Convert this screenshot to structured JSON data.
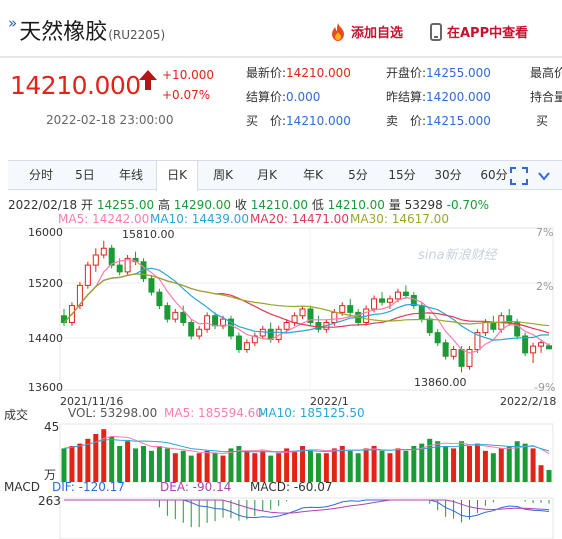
{
  "header": {
    "title": "天然橡胶",
    "code": "(RU2205)",
    "add_watchlist": "添加自选",
    "view_in_app": "在APP中查看"
  },
  "quote": {
    "price": "14210.000",
    "change": "+10.000",
    "change_pct": "+0.07%",
    "time": "2022-02-18 23:00:00",
    "fields": [
      {
        "label": "最新价:",
        "value": "14210.000"
      },
      {
        "label": "开盘价:",
        "value": "14255.000"
      },
      {
        "label": "最高价",
        "value": ""
      },
      {
        "label": "结算价:",
        "value": "0.000"
      },
      {
        "label": "昨结算:",
        "value": "14200.000"
      },
      {
        "label": "持合量",
        "value": ""
      },
      {
        "label": "买　价:",
        "value": "14210.000"
      },
      {
        "label": "卖　价:",
        "value": "14215.000"
      },
      {
        "label": "买",
        "value": ""
      }
    ]
  },
  "tabs": [
    "分时",
    "5日",
    "年线",
    "日K",
    "周K",
    "月K",
    "年K",
    "5分",
    "15分",
    "30分",
    "60分"
  ],
  "active_tab": "日K",
  "kline_info": {
    "date": "2022/02/18",
    "open_label": "开",
    "open": "14255.00",
    "high_label": "高",
    "high": "14290.00",
    "close_label": "收",
    "close": "14210.00",
    "low_label": "低",
    "low": "14210.00",
    "vol_label": "量",
    "vol": "53298",
    "pct": "-0.70%",
    "ma5": "MA5: 14242.00",
    "ma10": "MA10: 14439.00",
    "ma20": "MA20: 14471.00",
    "ma30": "MA30: 14617.00"
  },
  "vol_info": {
    "label": "成交",
    "vol": "VOL: 53298.00",
    "ma5": "MA5: 185594.60",
    "ma10": "MA10: 185125.50",
    "y_top": "45",
    "unit": "万"
  },
  "macd_info": {
    "label": "MACD",
    "dif": "DIF: -120.17",
    "dea": "DEA: -90.14",
    "macd": "MACD: -60.07",
    "y_top": "263"
  },
  "watermark": "sina新浪财经",
  "colors": {
    "up": "#e2231a",
    "down": "#1a9b36",
    "ma5": "#ff7bb0",
    "ma10": "#2aa6d6",
    "ma20": "#e03a5a",
    "ma30": "#9aa82a"
  },
  "chart_data": {
    "type": "candlestick",
    "y_ticks": [
      16000,
      15200,
      14400,
      13600
    ],
    "y_pct_ticks": [
      "7%",
      "2%",
      "-9%"
    ],
    "x_ticks": [
      "2021/11/16",
      "2022/1",
      "2022/2/18"
    ],
    "max_label": "15810.00",
    "min_label": "13860.00",
    "ylim": [
      13600,
      16000
    ],
    "candles": [
      [
        14700,
        14800,
        14550,
        14600
      ],
      [
        14600,
        14900,
        14550,
        14850
      ],
      [
        14850,
        15200,
        14800,
        15150
      ],
      [
        15150,
        15500,
        15100,
        15450
      ],
      [
        15450,
        15700,
        15350,
        15600
      ],
      [
        15600,
        15810,
        15550,
        15700
      ],
      [
        15700,
        15750,
        15400,
        15450
      ],
      [
        15450,
        15550,
        15300,
        15350
      ],
      [
        15350,
        15600,
        15300,
        15550
      ],
      [
        15550,
        15650,
        15450,
        15500
      ],
      [
        15500,
        15550,
        15200,
        15250
      ],
      [
        15250,
        15300,
        15000,
        15050
      ],
      [
        15050,
        15100,
        14800,
        14850
      ],
      [
        14850,
        14900,
        14600,
        14650
      ],
      [
        14650,
        14800,
        14600,
        14750
      ],
      [
        14750,
        14850,
        14550,
        14600
      ],
      [
        14600,
        14650,
        14350,
        14400
      ],
      [
        14400,
        14550,
        14350,
        14500
      ],
      [
        14500,
        14750,
        14450,
        14700
      ],
      [
        14700,
        14750,
        14500,
        14550
      ],
      [
        14550,
        14700,
        14500,
        14650
      ],
      [
        14650,
        14700,
        14350,
        14400
      ],
      [
        14400,
        14450,
        14150,
        14200
      ],
      [
        14200,
        14350,
        14150,
        14300
      ],
      [
        14300,
        14450,
        14250,
        14400
      ],
      [
        14400,
        14550,
        14350,
        14500
      ],
      [
        14500,
        14600,
        14300,
        14350
      ],
      [
        14350,
        14550,
        14300,
        14500
      ],
      [
        14500,
        14650,
        14450,
        14600
      ],
      [
        14600,
        14750,
        14550,
        14700
      ],
      [
        14700,
        14850,
        14650,
        14800
      ],
      [
        14800,
        14850,
        14550,
        14600
      ],
      [
        14600,
        14700,
        14450,
        14500
      ],
      [
        14500,
        14650,
        14450,
        14600
      ],
      [
        14600,
        14800,
        14550,
        14750
      ],
      [
        14750,
        14900,
        14700,
        14850
      ],
      [
        14850,
        14950,
        14700,
        14750
      ],
      [
        14750,
        14800,
        14550,
        14600
      ],
      [
        14600,
        14850,
        14550,
        14800
      ],
      [
        14800,
        15000,
        14750,
        14950
      ],
      [
        14950,
        15050,
        14850,
        14900
      ],
      [
        14900,
        15000,
        14800,
        14950
      ],
      [
        14950,
        15100,
        14900,
        15050
      ],
      [
        15050,
        15150,
        14950,
        15000
      ],
      [
        15000,
        15050,
        14800,
        14850
      ],
      [
        14850,
        14900,
        14600,
        14650
      ],
      [
        14650,
        14700,
        14400,
        14450
      ],
      [
        14450,
        14500,
        14250,
        14300
      ],
      [
        14300,
        14350,
        14050,
        14100
      ],
      [
        14100,
        14250,
        14050,
        14200
      ],
      [
        14200,
        14250,
        13860,
        13950
      ],
      [
        13950,
        14250,
        13900,
        14200
      ],
      [
        14200,
        14500,
        14150,
        14450
      ],
      [
        14450,
        14650,
        14400,
        14600
      ],
      [
        14600,
        14700,
        14450,
        14500
      ],
      [
        14500,
        14750,
        14450,
        14700
      ],
      [
        14700,
        14800,
        14550,
        14600
      ],
      [
        14600,
        14650,
        14350,
        14400
      ],
      [
        14400,
        14450,
        14100,
        14150
      ],
      [
        14150,
        14300,
        14000,
        14250
      ],
      [
        14250,
        14350,
        14150,
        14300
      ],
      [
        14255,
        14290,
        14210,
        14210
      ]
    ],
    "volumes": [
      28,
      30,
      32,
      36,
      40,
      44,
      38,
      30,
      34,
      28,
      30,
      26,
      30,
      28,
      24,
      26,
      22,
      24,
      26,
      24,
      22,
      28,
      30,
      26,
      24,
      26,
      22,
      24,
      28,
      26,
      30,
      26,
      24,
      24,
      28,
      30,
      26,
      24,
      28,
      30,
      26,
      24,
      28,
      26,
      30,
      32,
      36,
      34,
      30,
      28,
      34,
      30,
      32,
      26,
      24,
      28,
      30,
      34,
      32,
      28,
      14,
      10
    ]
  }
}
